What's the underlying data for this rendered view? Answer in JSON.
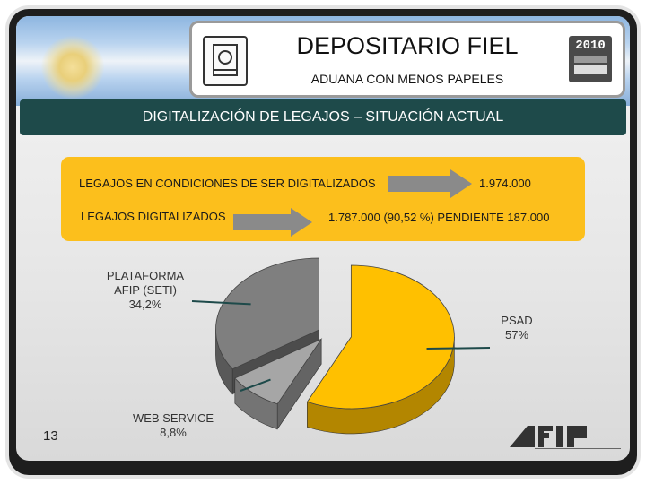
{
  "header": {
    "title": "DEPOSITARIO FIEL",
    "subtitle": "ADUANA CON MENOS PAPELES",
    "year_badge": "2010"
  },
  "banner": {
    "text": "DIGITALIZACIÓN DE LEGAJOS – SITUACIÓN ACTUAL"
  },
  "info": {
    "row1_label": "LEGAJOS EN CONDICIONES DE SER DIGITALIZADOS",
    "row1_value": "1.974.000",
    "row2_label": "LEGAJOS DIGITALIZADOS",
    "row2_value": "1.787.000 (90,52 %) PENDIENTE 187.000"
  },
  "slide_number": "13",
  "colors": {
    "banner": "#1e4a4a",
    "info_box": "#fcbf1c",
    "psad": "#ffc000",
    "web_service": "#a6a6a6",
    "afip_seti": "#7f7f7f"
  },
  "chart_data": {
    "type": "pie",
    "title": "",
    "slices": [
      {
        "name": "PSAD",
        "label_lines": [
          "PSAD",
          "57%"
        ],
        "value": 57,
        "color": "#ffc000"
      },
      {
        "name": "WEB SERVICE",
        "label_lines": [
          "WEB SERVICE",
          "8,8%"
        ],
        "value": 8.8,
        "color": "#a6a6a6"
      },
      {
        "name": "PLATAFORMA AFIP (SETI)",
        "label_lines": [
          "PLATAFORMA",
          "AFIP (SETI)",
          "34,2%"
        ],
        "value": 34.2,
        "color": "#7f7f7f"
      }
    ],
    "style": "3d-exploded"
  }
}
